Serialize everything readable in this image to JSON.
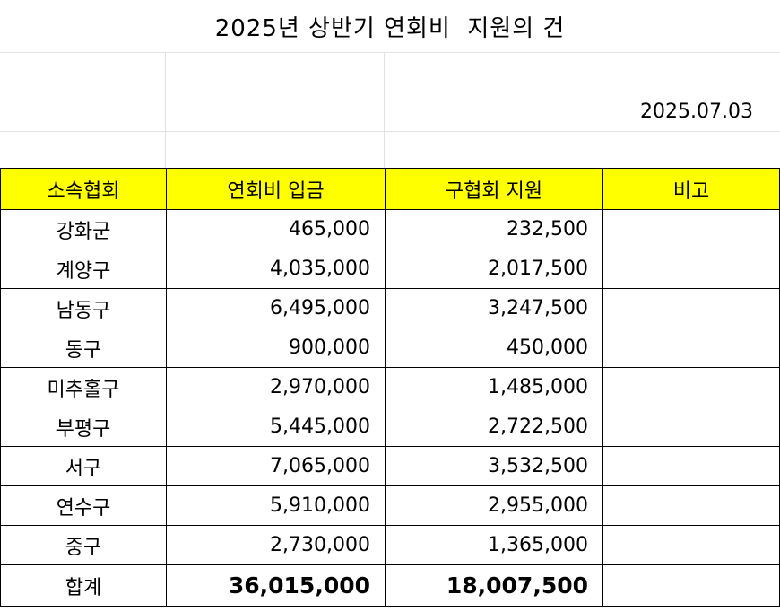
{
  "title": "2025년 상반기 연회비  지원의 건",
  "date": "2025.07.03",
  "headers": [
    "소속협회",
    "연회비 입금",
    "구협회 지원",
    "비고"
  ],
  "rows": [
    {
      "name": "강화군",
      "dues": "465,000",
      "support": "232,500",
      "note": ""
    },
    {
      "name": "계양구",
      "dues": "4,035,000",
      "support": "2,017,500",
      "note": ""
    },
    {
      "name": "남동구",
      "dues": "6,495,000",
      "support": "3,247,500",
      "note": ""
    },
    {
      "name": "동구",
      "dues": "900,000",
      "support": "450,000",
      "note": ""
    },
    {
      "name": "미추홀구",
      "dues": "2,970,000",
      "support": "1,485,000",
      "note": ""
    },
    {
      "name": "부평구",
      "dues": "5,445,000",
      "support": "2,722,500",
      "note": ""
    },
    {
      "name": "서구",
      "dues": "7,065,000",
      "support": "3,532,500",
      "note": ""
    },
    {
      "name": "연수구",
      "dues": "5,910,000",
      "support": "2,955,000",
      "note": ""
    },
    {
      "name": "중구",
      "dues": "2,730,000",
      "support": "1,365,000",
      "note": ""
    }
  ],
  "total": {
    "name": "합계",
    "dues": "36,015,000",
    "support": "18,007,500",
    "note": ""
  },
  "colors": {
    "header_bg": "#ffff00",
    "gridline": "#e2e2e2"
  }
}
